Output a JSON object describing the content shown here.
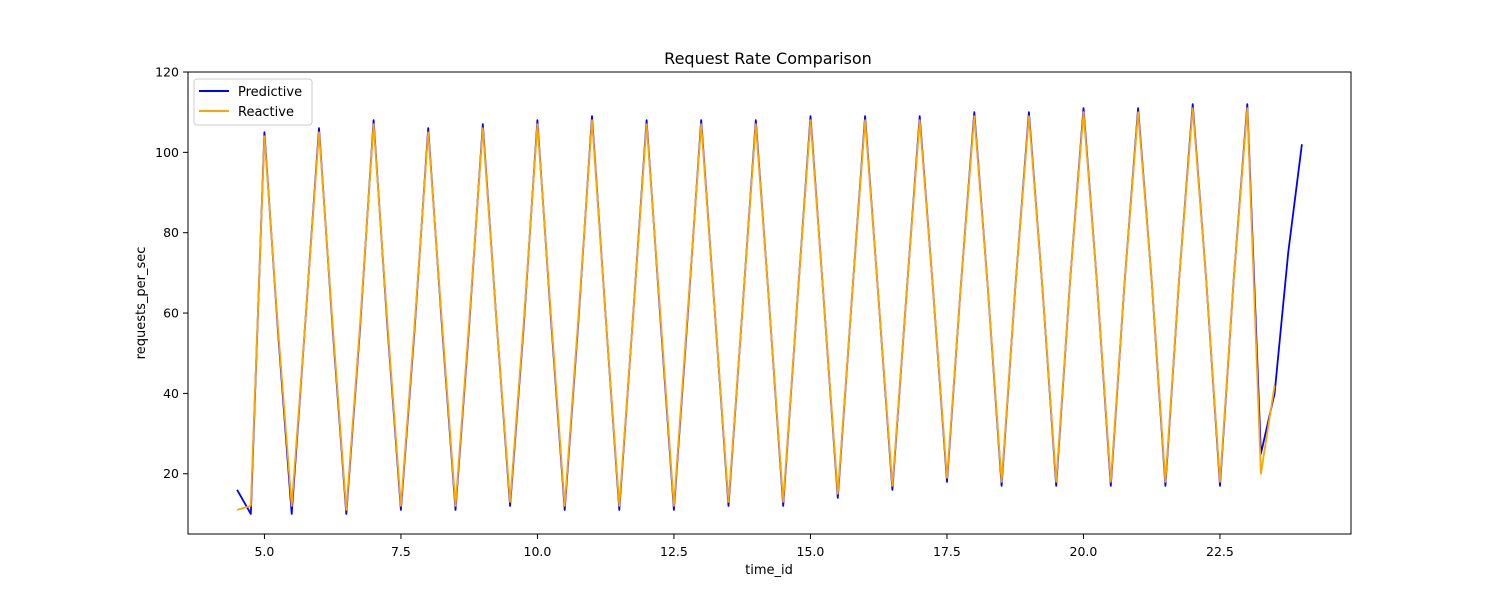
{
  "chart_data": {
    "type": "line",
    "title": "Request Rate Comparison",
    "xlabel": "time_id",
    "ylabel": "requests_per_sec",
    "xlim": [
      3.6,
      24.9
    ],
    "ylim": [
      5,
      120
    ],
    "xticks": [
      5.0,
      7.5,
      10.0,
      12.5,
      15.0,
      17.5,
      20.0,
      22.5
    ],
    "xtick_labels": [
      "5.0",
      "7.5",
      "10.0",
      "12.5",
      "15.0",
      "17.5",
      "20.0",
      "22.5"
    ],
    "yticks": [
      20,
      40,
      60,
      80,
      100,
      120
    ],
    "ytick_labels": [
      "20",
      "40",
      "60",
      "80",
      "100",
      "120"
    ],
    "grid": false,
    "legend_position": "upper-left",
    "series": [
      {
        "name": "Predictive",
        "color": "#0000ff",
        "x": [
          4.5,
          4.75,
          5.0,
          5.25,
          5.5,
          5.75,
          6.0,
          6.25,
          6.5,
          6.75,
          7.0,
          7.25,
          7.5,
          7.75,
          8.0,
          8.25,
          8.5,
          8.75,
          9.0,
          9.25,
          9.5,
          9.75,
          10.0,
          10.25,
          10.5,
          10.75,
          11.0,
          11.25,
          11.5,
          11.75,
          12.0,
          12.25,
          12.5,
          12.75,
          13.0,
          13.25,
          13.5,
          13.75,
          14.0,
          14.25,
          14.5,
          14.75,
          15.0,
          15.25,
          15.5,
          15.75,
          16.0,
          16.25,
          16.5,
          16.75,
          17.0,
          17.25,
          17.5,
          17.75,
          18.0,
          18.25,
          18.5,
          18.75,
          19.0,
          19.25,
          19.5,
          19.75,
          20.0,
          20.25,
          20.5,
          20.75,
          21.0,
          21.25,
          21.5,
          21.75,
          22.0,
          22.25,
          22.5,
          22.75,
          23.0,
          23.25,
          23.5,
          23.75,
          24.0
        ],
        "y": [
          16,
          10,
          105,
          55,
          10,
          58,
          106,
          56,
          10,
          56,
          108,
          57,
          11,
          56,
          106,
          57,
          11,
          57,
          107,
          58,
          12,
          57,
          108,
          58,
          11,
          58,
          109,
          59,
          11,
          59,
          108,
          59,
          11,
          59,
          108,
          60,
          12,
          60,
          108,
          61,
          12,
          61,
          109,
          62,
          14,
          62,
          109,
          63,
          16,
          63,
          109,
          65,
          18,
          66,
          110,
          66,
          17,
          66,
          110,
          66,
          17,
          67,
          111,
          67,
          17,
          67,
          111,
          68,
          17,
          68,
          112,
          68,
          17,
          68,
          112,
          25,
          40,
          75,
          102
        ]
      },
      {
        "name": "Reactive",
        "color": "#ffa500",
        "x": [
          4.5,
          4.75,
          5.0,
          5.25,
          5.5,
          5.75,
          6.0,
          6.25,
          6.5,
          6.75,
          7.0,
          7.25,
          7.5,
          7.75,
          8.0,
          8.25,
          8.5,
          8.75,
          9.0,
          9.25,
          9.5,
          9.75,
          10.0,
          10.25,
          10.5,
          10.75,
          11.0,
          11.25,
          11.5,
          11.75,
          12.0,
          12.25,
          12.5,
          12.75,
          13.0,
          13.25,
          13.5,
          13.75,
          14.0,
          14.25,
          14.5,
          14.75,
          15.0,
          15.25,
          15.5,
          15.75,
          16.0,
          16.25,
          16.5,
          16.75,
          17.0,
          17.25,
          17.5,
          17.75,
          18.0,
          18.25,
          18.5,
          18.75,
          19.0,
          19.25,
          19.5,
          19.75,
          20.0,
          20.25,
          20.5,
          20.75,
          21.0,
          21.25,
          21.5,
          21.75,
          22.0,
          22.25,
          22.5,
          22.75,
          23.0,
          23.25,
          23.5
        ],
        "y": [
          11,
          12,
          104,
          56,
          12,
          58,
          105,
          57,
          11,
          57,
          107,
          58,
          12,
          57,
          105,
          58,
          12,
          58,
          106,
          58,
          13,
          58,
          107,
          59,
          12,
          59,
          108,
          59,
          12,
          59,
          107,
          60,
          12,
          60,
          107,
          60,
          13,
          60,
          107,
          61,
          13,
          61,
          108,
          62,
          15,
          62,
          108,
          63,
          17,
          63,
          108,
          65,
          19,
          66,
          109,
          66,
          18,
          66,
          109,
          66,
          18,
          67,
          110,
          67,
          18,
          67,
          110,
          68,
          18,
          68,
          111,
          68,
          18,
          68,
          111,
          20,
          42
        ]
      }
    ]
  }
}
